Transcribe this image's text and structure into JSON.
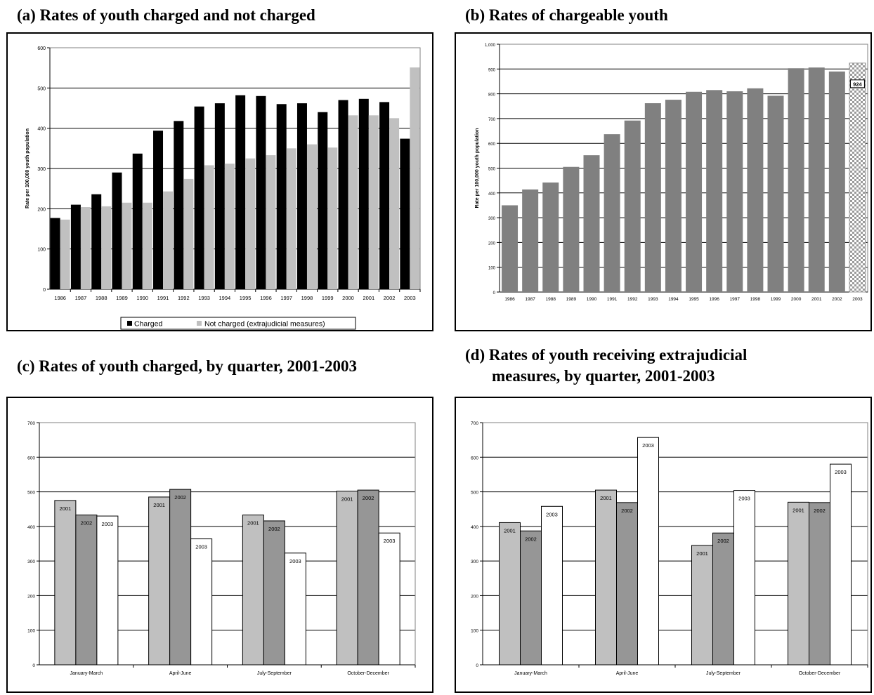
{
  "panels": {
    "a": {
      "title": "(a) Rates of youth charged and not charged"
    },
    "b": {
      "title": "(b) Rates of chargeable youth"
    },
    "c": {
      "title": "(c) Rates of youth charged, by quarter, 2001-2003"
    },
    "d": {
      "title_line1": "(d) Rates of youth receiving extrajudicial",
      "title_line2": "measures, by quarter, 2001-2003"
    }
  },
  "colors": {
    "charged": "#000000",
    "not_charged": "#c0c0c0",
    "chargeable": "#808080",
    "y2001": "#c0c0c0",
    "y2002": "#969696",
    "y2003": "#ffffff",
    "grid": "#000000"
  },
  "chart_data": [
    {
      "id": "a",
      "type": "bar",
      "title": "(a) Rates of youth charged and not charged",
      "ylabel": "Rate per 100,000 youth population",
      "xlabel": "",
      "ylim": [
        0,
        600
      ],
      "yticks": [
        "0",
        "100",
        "200",
        "300",
        "400",
        "500",
        "600"
      ],
      "grid": true,
      "legend": "bottom",
      "categories": [
        "1986",
        "1987",
        "1988",
        "1989",
        "1990",
        "1991",
        "1992",
        "1993",
        "1994",
        "1995",
        "1996",
        "1997",
        "1998",
        "1999",
        "2000",
        "2001",
        "2002",
        "2003"
      ],
      "series": [
        {
          "name": "Charged",
          "values": [
            177,
            210,
            236,
            290,
            337,
            394,
            418,
            454,
            462,
            482,
            480,
            460,
            462,
            440,
            470,
            473,
            465,
            374
          ]
        },
        {
          "name": "Not charged (extrajudicial measures)",
          "values": [
            173,
            204,
            206,
            215,
            215,
            243,
            274,
            308,
            312,
            325,
            333,
            350,
            360,
            352,
            432,
            432,
            425,
            551
          ]
        }
      ]
    },
    {
      "id": "b",
      "type": "bar",
      "title": "(b) Rates of chargeable youth",
      "ylabel": "Rate per 100,000 youth population",
      "xlabel": "",
      "ylim": [
        0,
        1000
      ],
      "yticks": [
        "0",
        "100",
        "200",
        "300",
        "400",
        "500",
        "600",
        "700",
        "800",
        "900",
        "1,000"
      ],
      "grid": true,
      "categories": [
        "1986",
        "1987",
        "1988",
        "1989",
        "1990",
        "1991",
        "1992",
        "1993",
        "1994",
        "1995",
        "1996",
        "1997",
        "1998",
        "1999",
        "2000",
        "2001",
        "2002",
        "2003"
      ],
      "values": [
        350,
        414,
        442,
        505,
        552,
        637,
        692,
        762,
        776,
        808,
        815,
        810,
        822,
        792,
        903,
        906,
        890,
        924
      ],
      "annotation": "924"
    },
    {
      "id": "c",
      "type": "bar",
      "title": "(c) Rates of youth charged, by quarter, 2001-2003",
      "xlabel": "",
      "ylabel": "",
      "ylim": [
        0,
        700
      ],
      "yticks": [
        "0",
        "100",
        "200",
        "300",
        "400",
        "500",
        "600",
        "700"
      ],
      "grid": true,
      "categories": [
        "January-March",
        "April-June",
        "July-September",
        "October-December"
      ],
      "series": [
        {
          "name": "2001",
          "values": [
            475,
            485,
            433,
            502
          ]
        },
        {
          "name": "2002",
          "values": [
            433,
            507,
            416,
            505
          ]
        },
        {
          "name": "2003",
          "values": [
            430,
            364,
            323,
            381
          ]
        }
      ]
    },
    {
      "id": "d",
      "type": "bar",
      "title": "(d) Rates of youth receiving extrajudicial measures, by quarter, 2001-2003",
      "xlabel": "",
      "ylabel": "",
      "ylim": [
        0,
        700
      ],
      "yticks": [
        "0",
        "100",
        "200",
        "300",
        "400",
        "500",
        "600",
        "700"
      ],
      "grid": true,
      "categories": [
        "January-March",
        "April-June",
        "July-September",
        "October-December"
      ],
      "series": [
        {
          "name": "2001",
          "values": [
            411,
            505,
            345,
            470
          ]
        },
        {
          "name": "2002",
          "values": [
            387,
            469,
            381,
            469
          ]
        },
        {
          "name": "2003",
          "values": [
            458,
            657,
            504,
            580
          ]
        }
      ]
    }
  ]
}
